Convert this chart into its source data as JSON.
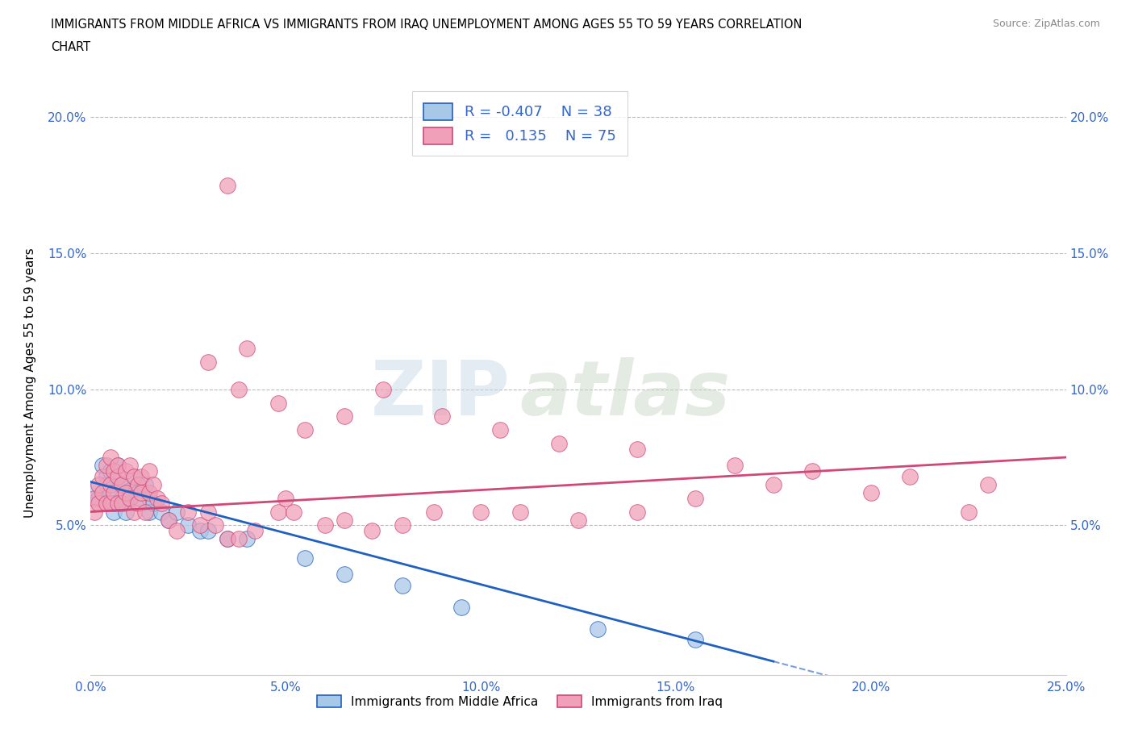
{
  "title_line1": "IMMIGRANTS FROM MIDDLE AFRICA VS IMMIGRANTS FROM IRAQ UNEMPLOYMENT AMONG AGES 55 TO 59 YEARS CORRELATION",
  "title_line2": "CHART",
  "source_text": "Source: ZipAtlas.com",
  "ylabel": "Unemployment Among Ages 55 to 59 years",
  "xlim": [
    0.0,
    0.25
  ],
  "ylim": [
    -0.005,
    0.21
  ],
  "xticks": [
    0.0,
    0.05,
    0.1,
    0.15,
    0.2,
    0.25
  ],
  "xticklabels": [
    "0.0%",
    "5.0%",
    "10.0%",
    "15.0%",
    "20.0%",
    "25.0%"
  ],
  "ytick_vals": [
    0.0,
    0.05,
    0.1,
    0.15,
    0.2
  ],
  "yticklabels_left": [
    "",
    "5.0%",
    "10.0%",
    "15.0%",
    "20.0%"
  ],
  "yticklabels_right": [
    "",
    "5.0%",
    "10.0%",
    "15.0%",
    "20.0%"
  ],
  "watermark1": "ZIP",
  "watermark2": "atlas",
  "color_blue": "#a8c8e8",
  "color_pink": "#f0a0b8",
  "line_blue": "#2060c0",
  "line_pink": "#d04878",
  "label1": "Immigrants from Middle Africa",
  "label2": "Immigrants from Iraq",
  "blue_x": [
    0.001,
    0.002,
    0.003,
    0.004,
    0.004,
    0.005,
    0.005,
    0.006,
    0.006,
    0.007,
    0.007,
    0.008,
    0.008,
    0.009,
    0.009,
    0.01,
    0.01,
    0.011,
    0.012,
    0.013,
    0.014,
    0.015,
    0.015,
    0.016,
    0.018,
    0.02,
    0.022,
    0.025,
    0.028,
    0.03,
    0.035,
    0.04,
    0.055,
    0.065,
    0.08,
    0.095,
    0.13,
    0.155
  ],
  "blue_y": [
    0.063,
    0.06,
    0.072,
    0.068,
    0.065,
    0.07,
    0.062,
    0.055,
    0.058,
    0.068,
    0.072,
    0.065,
    0.06,
    0.058,
    0.055,
    0.063,
    0.06,
    0.068,
    0.062,
    0.058,
    0.065,
    0.06,
    0.055,
    0.058,
    0.055,
    0.052,
    0.055,
    0.05,
    0.048,
    0.048,
    0.045,
    0.045,
    0.038,
    0.032,
    0.028,
    0.02,
    0.012,
    0.008
  ],
  "pink_x": [
    0.001,
    0.001,
    0.002,
    0.002,
    0.003,
    0.003,
    0.004,
    0.004,
    0.005,
    0.005,
    0.005,
    0.006,
    0.006,
    0.007,
    0.007,
    0.007,
    0.008,
    0.008,
    0.009,
    0.009,
    0.01,
    0.01,
    0.011,
    0.011,
    0.012,
    0.012,
    0.013,
    0.013,
    0.014,
    0.015,
    0.015,
    0.016,
    0.017,
    0.018,
    0.02,
    0.022,
    0.025,
    0.028,
    0.03,
    0.032,
    0.035,
    0.038,
    0.042,
    0.048,
    0.052,
    0.06,
    0.065,
    0.072,
    0.08,
    0.088,
    0.1,
    0.11,
    0.125,
    0.14,
    0.155,
    0.175,
    0.2,
    0.225,
    0.03,
    0.038,
    0.048,
    0.055,
    0.065,
    0.075,
    0.09,
    0.105,
    0.12,
    0.14,
    0.165,
    0.185,
    0.21,
    0.23,
    0.035,
    0.04,
    0.05
  ],
  "pink_y": [
    0.06,
    0.055,
    0.065,
    0.058,
    0.068,
    0.062,
    0.072,
    0.058,
    0.075,
    0.065,
    0.058,
    0.07,
    0.062,
    0.068,
    0.072,
    0.058,
    0.065,
    0.058,
    0.07,
    0.062,
    0.06,
    0.072,
    0.068,
    0.055,
    0.065,
    0.058,
    0.062,
    0.068,
    0.055,
    0.07,
    0.062,
    0.065,
    0.06,
    0.058,
    0.052,
    0.048,
    0.055,
    0.05,
    0.055,
    0.05,
    0.045,
    0.045,
    0.048,
    0.055,
    0.055,
    0.05,
    0.052,
    0.048,
    0.05,
    0.055,
    0.055,
    0.055,
    0.052,
    0.055,
    0.06,
    0.065,
    0.062,
    0.055,
    0.11,
    0.1,
    0.095,
    0.085,
    0.09,
    0.1,
    0.09,
    0.085,
    0.08,
    0.078,
    0.072,
    0.07,
    0.068,
    0.065,
    0.175,
    0.115,
    0.06
  ],
  "trend_blue_start_x": 0.0,
  "trend_blue_start_y": 0.066,
  "trend_blue_end_x": 0.175,
  "trend_blue_end_y": 0.0,
  "trend_pink_start_x": 0.0,
  "trend_pink_start_y": 0.055,
  "trend_pink_end_x": 0.25,
  "trend_pink_end_y": 0.075
}
